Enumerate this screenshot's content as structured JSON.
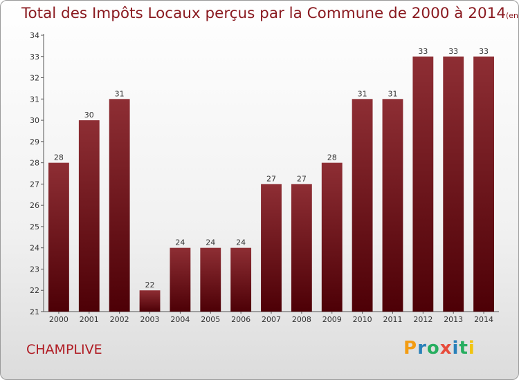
{
  "title": "Total des Impôts Locaux perçus par la Commune de 2000 à 2014",
  "unit": "(en milliers d'€)",
  "commune": "CHAMPLIVE",
  "logo": {
    "text": "Proxiti",
    "colors": [
      "#f39c12",
      "#2980b9",
      "#27ae60",
      "#e74c3c",
      "#2980b9",
      "#27ae60",
      "#f1c40f"
    ]
  },
  "colors": {
    "bar_top": "#8e2e34",
    "bar_bottom": "#4d0006",
    "title": "#8a1a20"
  },
  "chart_data": {
    "type": "bar",
    "title": "Total des Impôts Locaux perçus par la Commune de 2000 à 2014",
    "categories": [
      "2000",
      "2001",
      "2002",
      "2003",
      "2004",
      "2005",
      "2006",
      "2007",
      "2008",
      "2009",
      "2010",
      "2011",
      "2012",
      "2013",
      "2014"
    ],
    "values": [
      28,
      30,
      31,
      22,
      24,
      24,
      24,
      27,
      27,
      28,
      31,
      31,
      33,
      33,
      33
    ],
    "data_labels": [
      "28",
      "30",
      "31",
      "22",
      "24",
      "24",
      "24",
      "27",
      "27",
      "28",
      "31",
      "31",
      "33",
      "33",
      "33"
    ],
    "ylim": [
      21,
      34
    ],
    "yticks": [
      "21",
      "22",
      "23",
      "24",
      "25",
      "26",
      "27",
      "28",
      "29",
      "30",
      "31",
      "32",
      "33",
      "34"
    ],
    "grid": false,
    "legend": "none"
  }
}
